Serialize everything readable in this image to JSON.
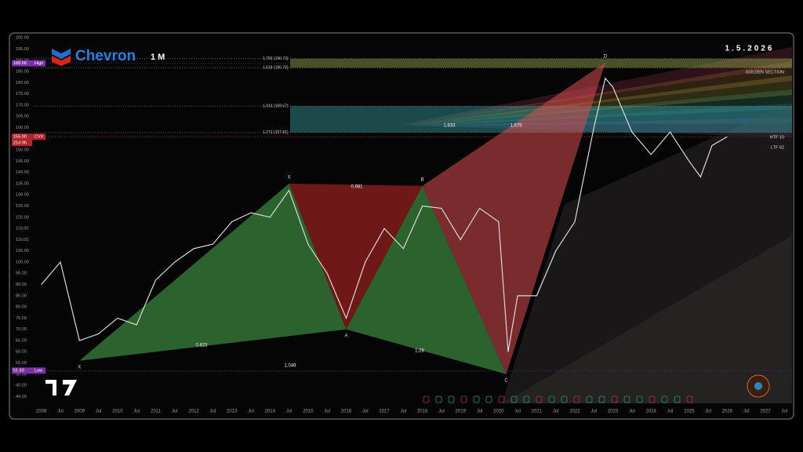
{
  "header": {
    "logo": "Chevron",
    "interval": "1 M",
    "date": "1.5.2026"
  },
  "chart_data": {
    "type": "line",
    "series": [
      {
        "name": "CVX",
        "color": "#d9d9d9",
        "x": [
          2008.0,
          2008.5,
          2009.0,
          2009.5,
          2010.0,
          2010.5,
          2011.0,
          2011.5,
          2012.0,
          2012.5,
          2013.0,
          2013.5,
          2014.0,
          2014.5,
          2015.0,
          2015.5,
          2016.0,
          2016.5,
          2017.0,
          2017.5,
          2018.0,
          2018.5,
          2019.0,
          2019.5,
          2020.0,
          2020.25,
          2020.5,
          2021.0,
          2021.5,
          2022.0,
          2022.5,
          2022.8,
          2023.0,
          2023.5,
          2024.0,
          2024.5,
          2025.0,
          2025.3,
          2025.6,
          2026.0
        ],
        "values": [
          90,
          100,
          65,
          68,
          75,
          72,
          92,
          100,
          106,
          108,
          118,
          122,
          120,
          132,
          108,
          95,
          75,
          100,
          115,
          106,
          125,
          124,
          110,
          124,
          118,
          60,
          85,
          85,
          105,
          118,
          160,
          182,
          178,
          158,
          148,
          158,
          145,
          138,
          152,
          155.9
        ]
      }
    ],
    "xlim": [
      2007.8,
      2027.7
    ],
    "ylim": [
      37,
      201.5
    ],
    "yticks": [
      {
        "value": 40,
        "label": "40.00"
      },
      {
        "value": 45,
        "label": "45.00"
      },
      {
        "value": 50,
        "label": "50.00"
      },
      {
        "value": 55,
        "label": "55.00"
      },
      {
        "value": 60,
        "label": "60.00"
      },
      {
        "value": 65,
        "label": "65.00"
      },
      {
        "value": 70,
        "label": "70.00"
      },
      {
        "value": 75,
        "label": "75.00"
      },
      {
        "value": 80,
        "label": "80.00"
      },
      {
        "value": 85,
        "label": "85.00"
      },
      {
        "value": 90,
        "label": "90.00"
      },
      {
        "value": 95,
        "label": "95.00"
      },
      {
        "value": 100,
        "label": "100.00"
      },
      {
        "value": 105,
        "label": "105.00"
      },
      {
        "value": 110,
        "label": "110.00"
      },
      {
        "value": 115,
        "label": "115.00"
      },
      {
        "value": 120,
        "label": "120.00"
      },
      {
        "value": 125,
        "label": "125.00"
      },
      {
        "value": 130,
        "label": "130.00"
      },
      {
        "value": 135,
        "label": "135.00"
      },
      {
        "value": 140,
        "label": "140.00"
      },
      {
        "value": 145,
        "label": "145.00"
      },
      {
        "value": 150,
        "label": "150.00"
      },
      {
        "value": 155,
        "label": "155.00"
      },
      {
        "value": 160,
        "label": "160.00"
      },
      {
        "value": 165,
        "label": "165.00"
      },
      {
        "value": 170,
        "label": "170.00"
      },
      {
        "value": 175,
        "label": "175.00"
      },
      {
        "value": 180,
        "label": "180.00"
      },
      {
        "value": 185,
        "label": "185.00"
      },
      {
        "value": 190,
        "label": "190.00"
      },
      {
        "value": 195,
        "label": "195.00"
      },
      {
        "value": 200,
        "label": "200.00"
      }
    ],
    "xticks": [
      2008,
      {
        "value": 2008.5,
        "label": "Jul"
      },
      2009,
      {
        "value": 2009.5,
        "label": "Jul"
      },
      2010,
      {
        "value": 2010.5,
        "label": "Jul"
      },
      2011,
      {
        "value": 2011.5,
        "label": "Jul"
      },
      2012,
      {
        "value": 2012.5,
        "label": "Jul"
      },
      2013,
      {
        "value": 2013.5,
        "label": "Jul"
      },
      2014,
      {
        "value": 2014.5,
        "label": "Jul"
      },
      2015,
      {
        "value": 2015.5,
        "label": "Jul"
      },
      2016,
      {
        "value": 2016.5,
        "label": "Jul"
      },
      2017,
      {
        "value": 2017.5,
        "label": "Jul"
      },
      2018,
      {
        "value": 2018.5,
        "label": "Jul"
      },
      2019,
      {
        "value": 2019.5,
        "label": "Jul"
      },
      2020,
      {
        "value": 2020.5,
        "label": "Jul"
      },
      2021,
      {
        "value": 2021.5,
        "label": "Jul"
      },
      2022,
      {
        "value": 2022.5,
        "label": "Jul"
      },
      2023,
      {
        "value": 2023.5,
        "label": "Jul"
      },
      2024,
      {
        "value": 2024.5,
        "label": "Jul"
      },
      2025,
      {
        "value": 2025.5,
        "label": "Jul"
      },
      2026,
      {
        "value": 2026.5,
        "label": "Jul"
      },
      2027,
      {
        "value": 2027.5,
        "label": "Jul"
      }
    ],
    "price_tags": [
      {
        "price": 188.68,
        "text": "High"
      },
      {
        "price": {
          "value": 155.9,
          "label": "155.90"
        },
        "text": "CVX",
        "countdown": "21d 9h"
      },
      {
        "price": {
          "value": 51.6,
          "label": "51.60"
        },
        "text": "Low"
      }
    ],
    "pattern": {
      "points": [
        {
          "label": "X",
          "x": 2009.0,
          "y": 56
        },
        {
          "label": "X",
          "x": 2014.5,
          "y": 135
        },
        {
          "label": "A",
          "x": 2016.0,
          "y": 70
        },
        {
          "label": "B",
          "x": 2018.0,
          "y": 134
        },
        {
          "label": "C",
          "x": 2020.2,
          "y": 50
        },
        {
          "label": "D",
          "x": 2022.8,
          "y": 189
        }
      ],
      "ratios": [
        0.823,
        1.049,
        0.981,
        1.28,
        1.833,
        1.679
      ]
    },
    "fib_levels": [
      {
        "value": 190.73,
        "label": "1.702 (190.73)"
      },
      {
        "value": 186.7,
        "label": "1.618 (186.70)"
      },
      {
        "value": 169.57,
        "label": "1.414 (169.57)"
      },
      {
        "value": 157.81,
        "label": "1.272 (157.81)"
      }
    ],
    "annotations": [
      "GOLDEN SECTION",
      "HTF 10",
      "LTF 62"
    ]
  }
}
